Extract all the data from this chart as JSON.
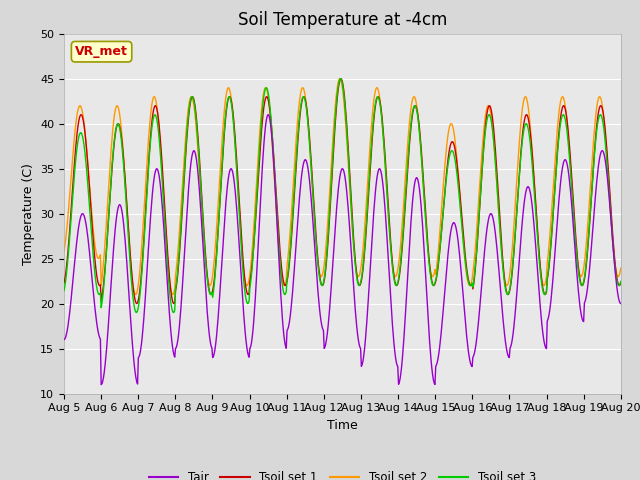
{
  "title": "Soil Temperature at -4cm",
  "xlabel": "Time",
  "ylabel": "Temperature (C)",
  "ylim": [
    10,
    50
  ],
  "x_tick_labels": [
    "Aug 5",
    "Aug 6",
    "Aug 7",
    "Aug 8",
    "Aug 9",
    "Aug 10",
    "Aug 11",
    "Aug 12",
    "Aug 13",
    "Aug 14",
    "Aug 15",
    "Aug 16",
    "Aug 17",
    "Aug 18",
    "Aug 19",
    "Aug 20"
  ],
  "background_color": "#d8d8d8",
  "plot_bg_color": "#e8e8e8",
  "grid_color": "#ffffff",
  "annotation_text": "VR_met",
  "annotation_bg": "#ffffcc",
  "annotation_edge": "#999900",
  "annotation_text_color": "#cc0000",
  "colors": {
    "Tair": "#9900cc",
    "Tsoil1": "#cc0000",
    "Tsoil2": "#ff9900",
    "Tsoil3": "#00cc00"
  },
  "legend_labels": [
    "Tair",
    "Tsoil set 1",
    "Tsoil set 2",
    "Tsoil set 3"
  ],
  "title_fontsize": 12,
  "axis_fontsize": 9,
  "tick_fontsize": 8,
  "tair_min": [
    16,
    11,
    14,
    15,
    14,
    15,
    17,
    15,
    13,
    11,
    13,
    14,
    15,
    18,
    20
  ],
  "tair_max": [
    30,
    31,
    35,
    37,
    35,
    41,
    36,
    35,
    35,
    34,
    29,
    30,
    33,
    36,
    37
  ],
  "ts1_min": [
    22,
    20,
    20,
    21,
    21,
    22,
    22,
    22,
    22,
    22,
    22,
    21,
    21,
    22,
    22
  ],
  "ts1_max": [
    41,
    40,
    42,
    43,
    43,
    43,
    43,
    45,
    43,
    42,
    38,
    42,
    41,
    42,
    42
  ],
  "ts2_min": [
    25,
    21,
    21,
    22,
    22,
    22,
    23,
    23,
    23,
    23,
    22,
    22,
    22,
    23,
    23
  ],
  "ts2_max": [
    42,
    42,
    43,
    43,
    44,
    44,
    44,
    45,
    44,
    43,
    40,
    42,
    43,
    43,
    43
  ],
  "ts3_min": [
    21,
    19,
    19,
    21,
    20,
    21,
    22,
    22,
    22,
    22,
    22,
    21,
    21,
    22,
    22
  ],
  "ts3_max": [
    39,
    40,
    41,
    43,
    43,
    44,
    43,
    45,
    43,
    42,
    37,
    41,
    40,
    41,
    41
  ]
}
